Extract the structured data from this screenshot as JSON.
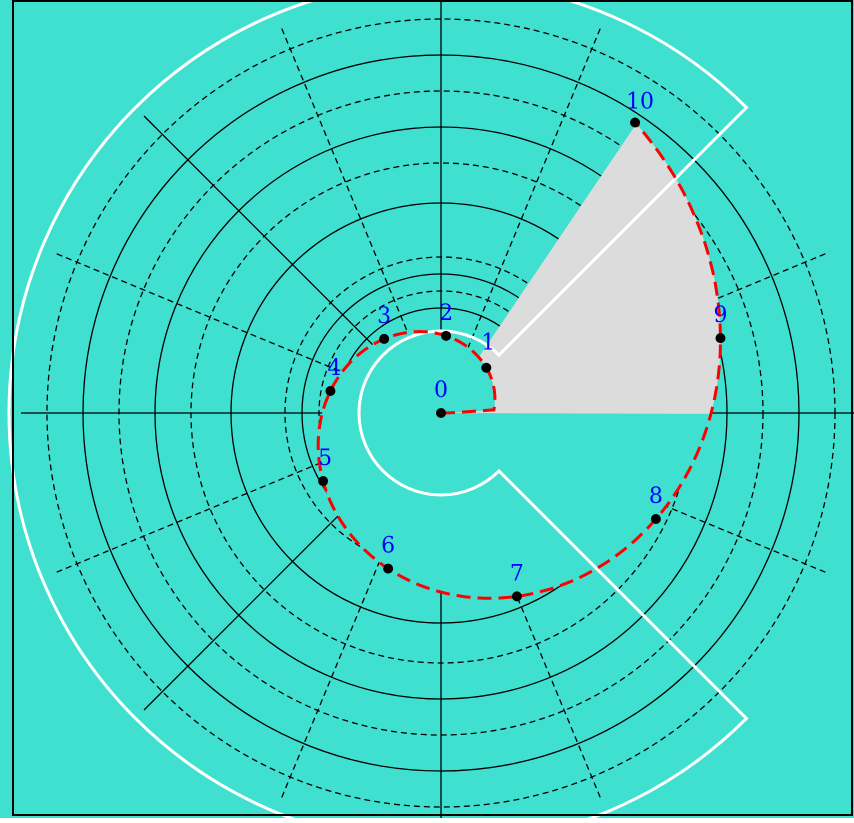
{
  "diagram": {
    "background_color": "#40E0D0",
    "region_color": "#DCDCDC",
    "spiral_color": "#FF0000",
    "grid_color": "#000000",
    "boundary_color": "#FFFFFF",
    "label_color": "#0000FF",
    "points": [
      {
        "label": "0"
      },
      {
        "label": "1"
      },
      {
        "label": "2"
      },
      {
        "label": "3"
      },
      {
        "label": "4"
      },
      {
        "label": "5"
      },
      {
        "label": "6"
      },
      {
        "label": "7"
      },
      {
        "label": "8"
      },
      {
        "label": "9"
      },
      {
        "label": "10"
      }
    ]
  }
}
